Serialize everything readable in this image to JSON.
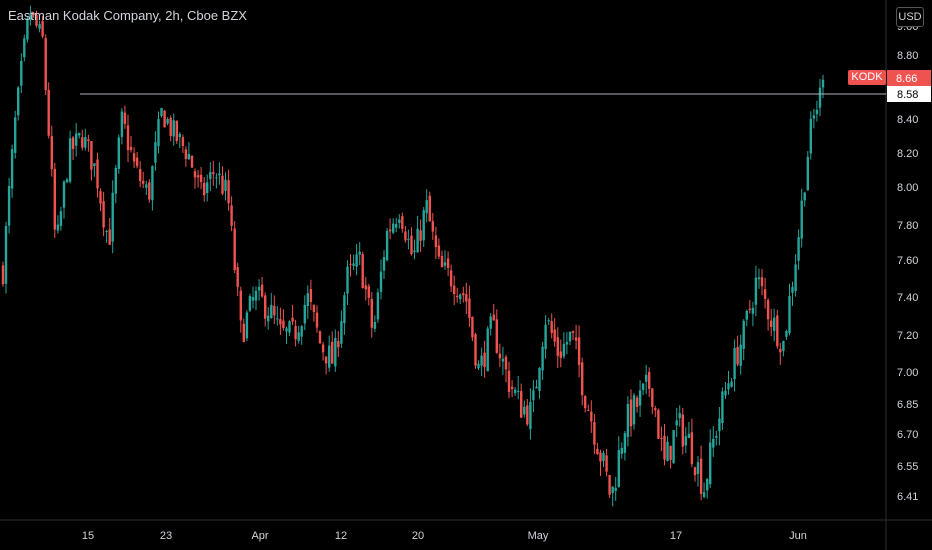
{
  "header": {
    "title": "Eastman Kodak Company, 2h, Cboe BZX",
    "currency": "USD"
  },
  "chart_data": {
    "type": "candlestick",
    "symbol": "KODK",
    "last_price": "8.66",
    "horizontal_line": {
      "value": 8.58,
      "label": "8.58"
    },
    "y_ticks": [
      "9.00",
      "8.80",
      "8.58",
      "8.40",
      "8.20",
      "8.00",
      "7.80",
      "7.60",
      "7.40",
      "7.20",
      "7.00",
      "6.85",
      "6.70",
      "6.55",
      "6.41"
    ],
    "x_ticks": [
      "15",
      "23",
      "Apr",
      "12",
      "20",
      "May",
      "17",
      "Jun"
    ],
    "colors": {
      "up": "#26a69a",
      "down": "#ef5350",
      "hline": "#b2b5be",
      "axis_text": "#d1d4dc",
      "badge": "#ef5350"
    },
    "anchor_closes": [
      7.55,
      8.45,
      9.1,
      8.9,
      7.65,
      8.2,
      8.3,
      8.1,
      7.7,
      8.4,
      8.1,
      7.95,
      8.45,
      8.3,
      8.2,
      7.95,
      8.1,
      7.95,
      7.2,
      7.4,
      7.35,
      7.2,
      7.2,
      7.4,
      7.15,
      7.05,
      7.5,
      7.6,
      7.2,
      7.75,
      7.9,
      7.6,
      7.9,
      7.55,
      7.5,
      7.4,
      7.0,
      7.25,
      7.0,
      6.85,
      6.8,
      7.3,
      7.1,
      7.2,
      6.9,
      6.65,
      6.4,
      6.75,
      6.85,
      6.95,
      6.55,
      6.75,
      6.65,
      6.45,
      6.75,
      7.0,
      7.2,
      7.5,
      7.3,
      7.15,
      7.65,
      8.3,
      8.66
    ]
  }
}
